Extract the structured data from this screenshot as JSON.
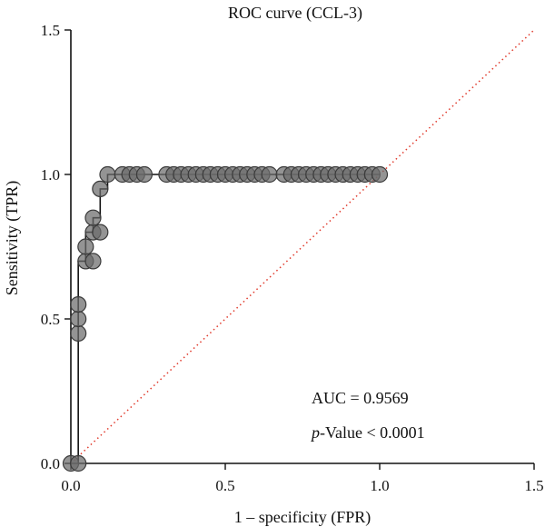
{
  "chart_data": {
    "type": "line",
    "title": "ROC curve (CCL-3)",
    "xlabel": "1 – specificity (FPR)",
    "ylabel": "Sensitivity (TPR)",
    "xlim": [
      0.0,
      1.5
    ],
    "ylim": [
      0.0,
      1.5
    ],
    "xticks": [
      "0.0",
      "0.5",
      "1.0",
      "1.5"
    ],
    "yticks": [
      "0.0",
      "0.5",
      "1.0",
      "1.5"
    ],
    "grid": false,
    "legend": "none",
    "annotations": {
      "auc": "AUC = 0.9569",
      "pvalue_italic": "p",
      "pvalue_rest": "-Value < 0.0001"
    },
    "colors": {
      "marker_fill": "#6b6b6b",
      "marker_stroke": "#3a3a3a",
      "curve": "#111111",
      "reference": "#e0392b"
    },
    "series": [
      {
        "kind": "roc-points",
        "x": [
          0.0,
          0.024,
          0.024,
          0.024,
          0.024,
          0.048,
          0.048,
          0.072,
          0.072,
          0.072,
          0.095,
          0.095,
          0.119,
          0.167,
          0.19,
          0.214,
          0.238,
          0.31,
          0.333,
          0.357,
          0.381,
          0.405,
          0.429,
          0.452,
          0.476,
          0.5,
          0.524,
          0.548,
          0.571,
          0.595,
          0.619,
          0.643,
          0.69,
          0.714,
          0.738,
          0.762,
          0.786,
          0.81,
          0.833,
          0.857,
          0.881,
          0.905,
          0.929,
          0.952,
          0.976,
          1.0
        ],
        "y": [
          0.0,
          0.0,
          0.45,
          0.5,
          0.55,
          0.7,
          0.75,
          0.7,
          0.8,
          0.85,
          0.8,
          0.95,
          1.0,
          1.0,
          1.0,
          1.0,
          1.0,
          1.0,
          1.0,
          1.0,
          1.0,
          1.0,
          1.0,
          1.0,
          1.0,
          1.0,
          1.0,
          1.0,
          1.0,
          1.0,
          1.0,
          1.0,
          1.0,
          1.0,
          1.0,
          1.0,
          1.0,
          1.0,
          1.0,
          1.0,
          1.0,
          1.0,
          1.0,
          1.0,
          1.0,
          1.0
        ]
      },
      {
        "kind": "roc-step-line",
        "x": [
          0.0,
          0.0,
          0.024,
          0.024,
          0.048,
          0.048,
          0.072,
          0.072,
          0.095,
          0.095,
          0.119,
          0.119,
          1.0
        ],
        "y": [
          0.0,
          0.0,
          0.0,
          0.7,
          0.7,
          0.8,
          0.8,
          0.85,
          0.85,
          0.95,
          0.95,
          1.0,
          1.0
        ]
      },
      {
        "kind": "reference-diagonal",
        "x": [
          0.0,
          1.5
        ],
        "y": [
          0.0,
          1.5
        ]
      }
    ]
  }
}
